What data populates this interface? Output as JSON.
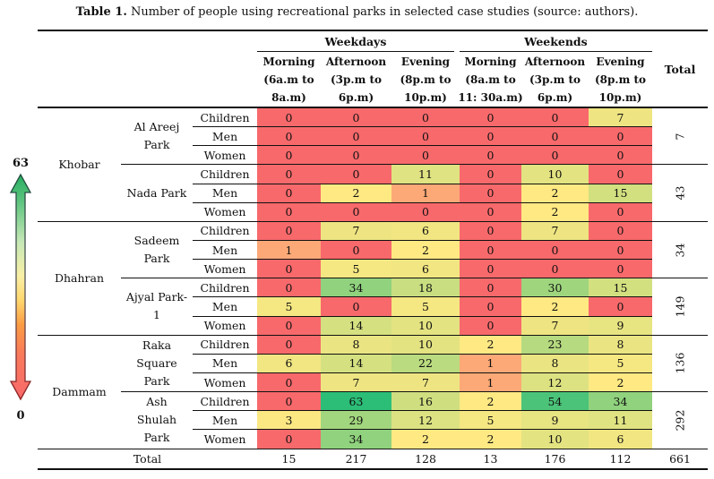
{
  "title": {
    "prefix": "Table 1.",
    "text": " Number of people using recreational parks in selected case studies (source: authors)."
  },
  "legend": {
    "max_label": "63",
    "min_label": "0"
  },
  "header": {
    "weekdays": "Weekdays",
    "weekends": "Weekends",
    "total": "Total",
    "columns": [
      "Morning\n(6a.m to\n8a.m)",
      "Afternoon\n(3p.m to\n6p.m)",
      "Evening\n(8p.m to\n10p.m)",
      "Morning\n(8a.m to\n11: 30a.m)",
      "Afternoon\n(3p.m to\n6p.m)",
      "Evening\n(8p.m to\n10p.m)"
    ]
  },
  "colormap": {
    "min_value": 0,
    "min_color": "#F8696B",
    "mid_value": 2,
    "mid_color": "#FFE983",
    "max_value": 63,
    "max_color": "#2CBE77"
  },
  "sections": [
    {
      "city": "Khobar",
      "parks": [
        {
          "name": "Al Areej\nPark",
          "total": 7,
          "rows": [
            {
              "group": "Children",
              "values": [
                0,
                0,
                0,
                0,
                0,
                7
              ]
            },
            {
              "group": "Men",
              "values": [
                0,
                0,
                0,
                0,
                0,
                0
              ]
            },
            {
              "group": "Women",
              "values": [
                0,
                0,
                0,
                0,
                0,
                0
              ]
            }
          ]
        },
        {
          "name": "Nada Park",
          "total": 43,
          "rows": [
            {
              "group": "Children",
              "values": [
                0,
                0,
                11,
                0,
                10,
                0
              ]
            },
            {
              "group": "Men",
              "values": [
                0,
                2,
                1,
                0,
                2,
                15
              ]
            },
            {
              "group": "Women",
              "values": [
                0,
                0,
                0,
                0,
                2,
                0
              ]
            }
          ]
        }
      ]
    },
    {
      "city": "Dhahran",
      "parks": [
        {
          "name": "Sadeem\nPark",
          "total": 34,
          "rows": [
            {
              "group": "Children",
              "values": [
                0,
                7,
                6,
                0,
                7,
                0
              ]
            },
            {
              "group": "Men",
              "values": [
                1,
                0,
                2,
                0,
                0,
                0
              ]
            },
            {
              "group": "Women",
              "values": [
                0,
                5,
                6,
                0,
                0,
                0
              ]
            }
          ]
        },
        {
          "name": "Ajyal Park-\n1",
          "total": 149,
          "rows": [
            {
              "group": "Children",
              "values": [
                0,
                34,
                18,
                0,
                30,
                15
              ]
            },
            {
              "group": "Men",
              "values": [
                5,
                0,
                5,
                0,
                2,
                0
              ]
            },
            {
              "group": "Women",
              "values": [
                0,
                14,
                10,
                0,
                7,
                9
              ]
            }
          ]
        }
      ]
    },
    {
      "city": "Dammam",
      "parks": [
        {
          "name": "Raka\nSquare\nPark",
          "total": 136,
          "rows": [
            {
              "group": "Children",
              "values": [
                0,
                8,
                10,
                2,
                23,
                8
              ]
            },
            {
              "group": "Men",
              "values": [
                6,
                14,
                22,
                1,
                8,
                5
              ]
            },
            {
              "group": "Women",
              "values": [
                0,
                7,
                7,
                1,
                12,
                2
              ]
            }
          ]
        },
        {
          "name": "Ash\nShulah\nPark",
          "total": 292,
          "rows": [
            {
              "group": "Children",
              "values": [
                0,
                63,
                16,
                2,
                54,
                34
              ]
            },
            {
              "group": "Men",
              "values": [
                3,
                29,
                12,
                5,
                9,
                11
              ]
            },
            {
              "group": "Women",
              "values": [
                0,
                34,
                2,
                2,
                10,
                6
              ]
            }
          ]
        }
      ]
    }
  ],
  "footer": {
    "label": "Total",
    "values": [
      15,
      217,
      128,
      13,
      176,
      112
    ],
    "grand_total": 661
  }
}
